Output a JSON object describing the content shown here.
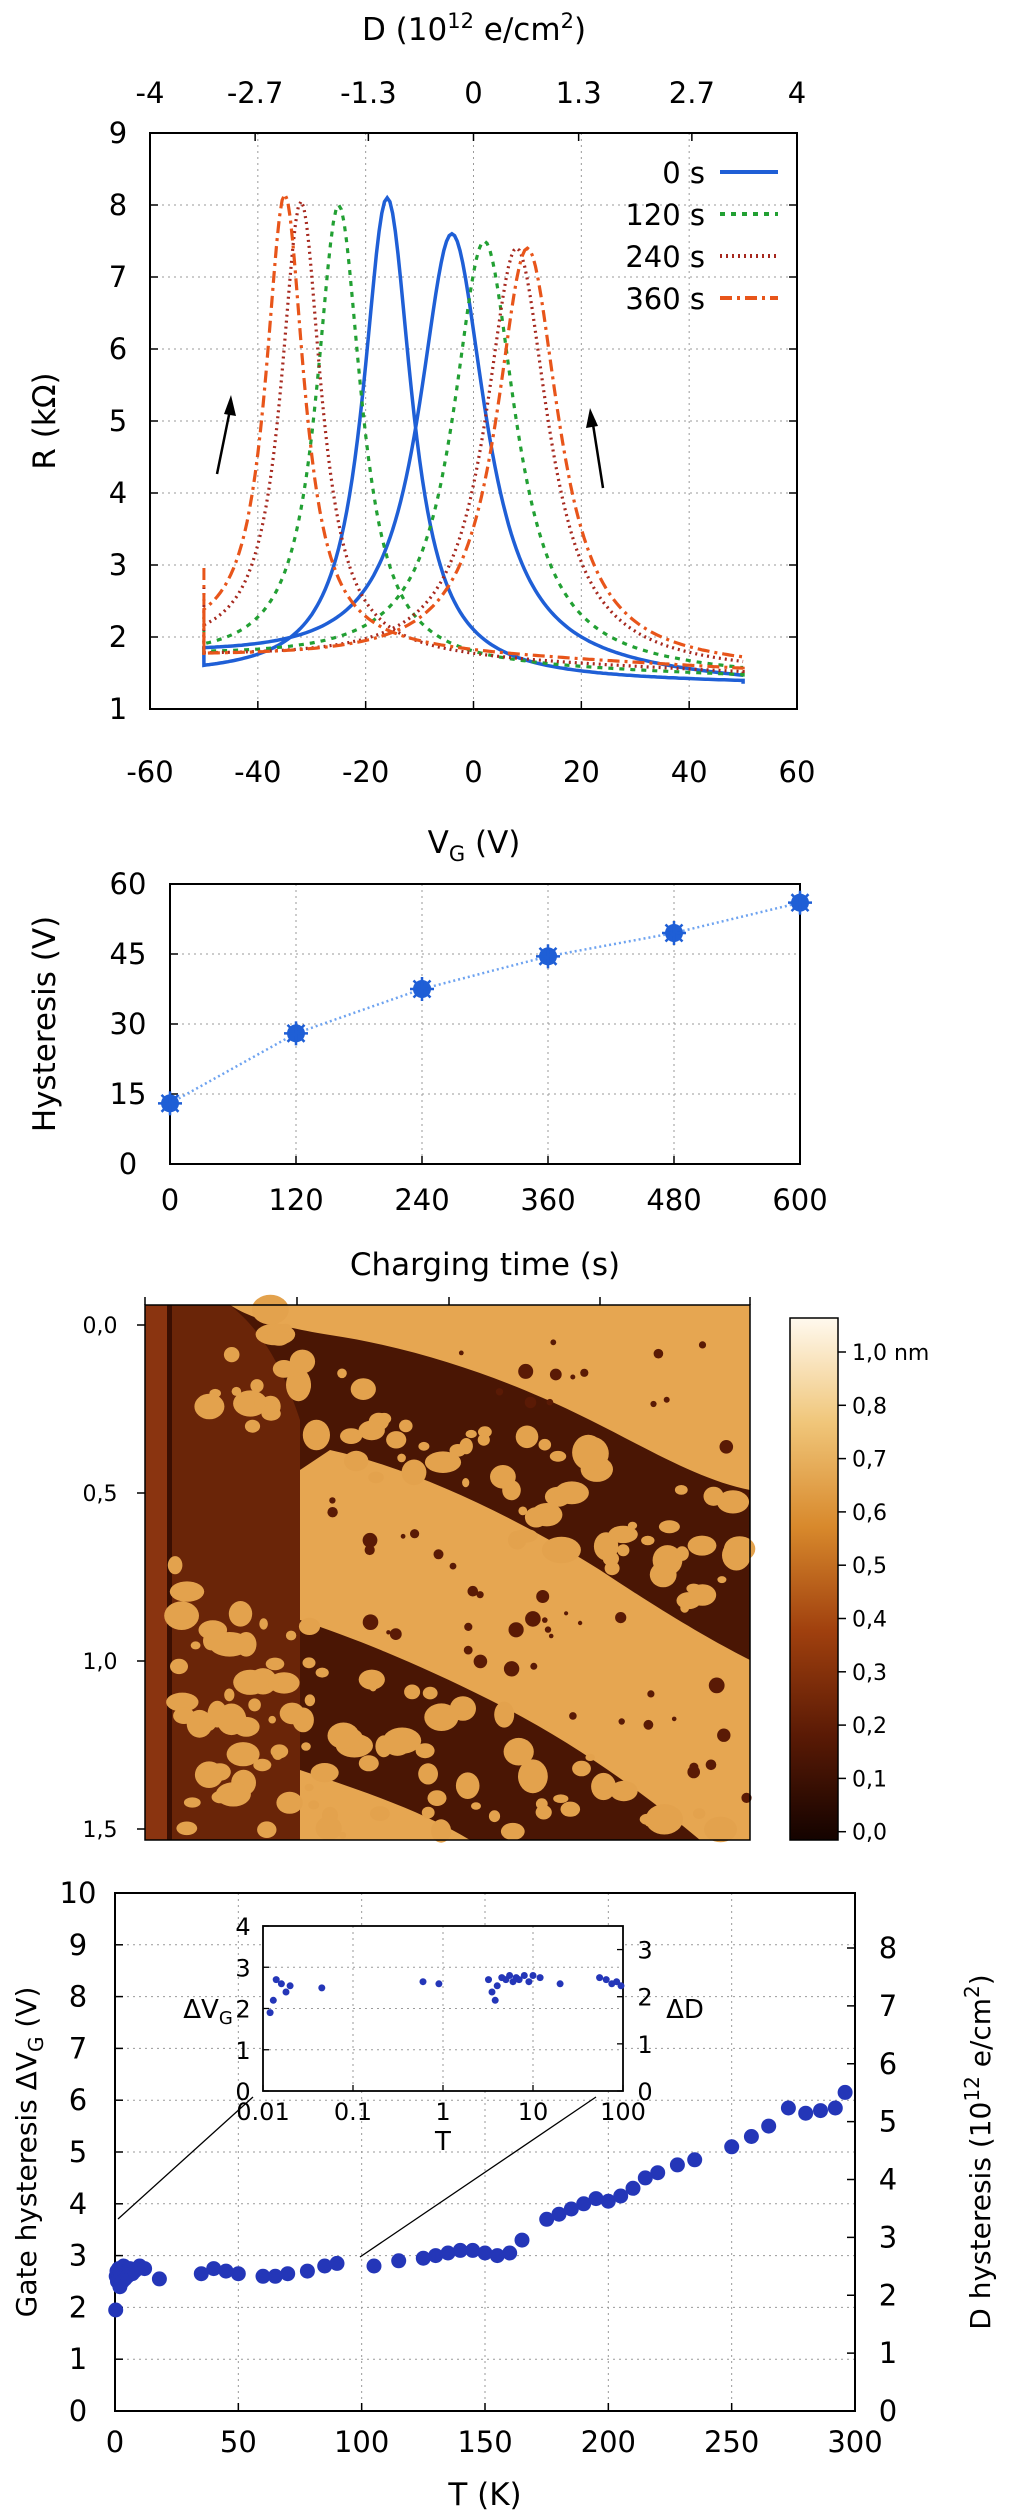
{
  "chart_data": [
    {
      "type": "line",
      "panel": "a",
      "xlabel_main": "V",
      "xlabel_sub": "G",
      "xlabel_unit": " (V)",
      "ylabel": "R (kΩ)",
      "top_label_main": "D (10",
      "top_label_exp": "12",
      "top_label_unit": " e/cm",
      "top_label_exp2": "2",
      "top_label_close": ")",
      "xlim": [
        -60,
        60
      ],
      "ylim": [
        1,
        9
      ],
      "xticks": [
        "-60",
        "-40",
        "-20",
        "0",
        "20",
        "40",
        "60"
      ],
      "yticks": [
        "1",
        "2",
        "3",
        "4",
        "5",
        "6",
        "7",
        "8",
        "9"
      ],
      "top_ticks": [
        {
          "v": -60,
          "label": "-4"
        },
        {
          "v": -40.5,
          "label": "-2.7"
        },
        {
          "v": -19.5,
          "label": "-1.3"
        },
        {
          "v": 0,
          "label": "0"
        },
        {
          "v": 19.5,
          "label": "1.3"
        },
        {
          "v": 40.5,
          "label": "2.7"
        },
        {
          "v": 60,
          "label": "4"
        }
      ],
      "grid": true,
      "legend_position": "top-right",
      "series": [
        {
          "name": "0 s",
          "color": "#1f5fd6",
          "dash": "solid",
          "peak_down": -16,
          "peak_up": -4,
          "max_down": 8.1,
          "max_up": 7.6,
          "w_down": 5.5,
          "w_up": 7.5,
          "start": 1.7,
          "end": 1.35
        },
        {
          "name": "120 s",
          "color": "#22a033",
          "dash": "dot",
          "peak_down": -25,
          "peak_up": 2,
          "max_down": 8.0,
          "max_up": 7.5,
          "w_down": 5.0,
          "w_up": 7.0,
          "start": 2.3,
          "end": 1.45
        },
        {
          "name": "240 s",
          "color": "#a6281e",
          "dash": "dotfine",
          "peak_down": -32,
          "peak_up": 8,
          "max_down": 8.05,
          "max_up": 7.4,
          "w_down": 4.5,
          "w_up": 7.0,
          "start": 2.7,
          "end": 1.5
        },
        {
          "name": "360 s",
          "color": "#e8551a",
          "dash": "dashdot",
          "peak_down": -35,
          "peak_up": 10,
          "max_down": 8.15,
          "max_up": 7.4,
          "w_down": 4.3,
          "w_up": 7.0,
          "start": 3.0,
          "end": 1.55
        }
      ]
    },
    {
      "type": "scatter",
      "panel": "b",
      "xlabel": "Charging time (s)",
      "ylabel": "Hysteresis (V)",
      "xlim": [
        0,
        600
      ],
      "ylim": [
        0,
        60
      ],
      "xticks": [
        "0",
        "120",
        "240",
        "360",
        "480",
        "600"
      ],
      "yticks": [
        "0",
        "15",
        "30",
        "45",
        "60"
      ],
      "grid": true,
      "x": [
        0,
        120,
        240,
        360,
        480,
        600
      ],
      "y": [
        13,
        28,
        37.5,
        44.5,
        49.5,
        56
      ]
    },
    {
      "type": "heatmap",
      "panel": "c",
      "yticks": [
        "0,0",
        "0,5",
        "1,0",
        "1,5"
      ],
      "colorbar_ticks": [
        "1,0 nm",
        "0,8",
        "0,7",
        "0,6",
        "0,5",
        "0,4",
        "0,3",
        "0,2",
        "0,1",
        "0,0"
      ],
      "colorbar_range": [
        0,
        1.0
      ],
      "colors": [
        "#140300",
        "#5a1a05",
        "#a0400e",
        "#d8892c",
        "#f0c67a",
        "#fff9ee"
      ]
    },
    {
      "type": "scatter",
      "panel": "d",
      "xlabel": "T (K)",
      "ylabel_main": "Gate hysteresis ΔV",
      "ylabel_sub": "G",
      "ylabel_unit": " (V)",
      "y2label_main": "D hysteresis (10",
      "y2label_exp": "12",
      "y2label_unit": " e/cm",
      "y2label_exp2": "2",
      "y2label_close": ")",
      "xlim": [
        0,
        300
      ],
      "ylim": [
        0,
        10
      ],
      "xticks": [
        "0",
        "50",
        "100",
        "150",
        "200",
        "250",
        "300"
      ],
      "yticks": [
        "0",
        "1",
        "2",
        "3",
        "4",
        "5",
        "6",
        "7",
        "8",
        "9",
        "10"
      ],
      "y2ticks": [
        "0",
        "1",
        "2",
        "3",
        "4",
        "5",
        "6",
        "7",
        "8"
      ],
      "grid": true,
      "color": "#2436b8",
      "points": [
        [
          0.3,
          1.95
        ],
        [
          0.5,
          2.6
        ],
        [
          0.8,
          2.7
        ],
        [
          1,
          2.5
        ],
        [
          1.5,
          2.75
        ],
        [
          2,
          2.4
        ],
        [
          2.5,
          2.6
        ],
        [
          3,
          2.5
        ],
        [
          3.5,
          2.8
        ],
        [
          4,
          2.55
        ],
        [
          4.5,
          2.7
        ],
        [
          5,
          2.6
        ],
        [
          6,
          2.75
        ],
        [
          7,
          2.65
        ],
        [
          8,
          2.7
        ],
        [
          10,
          2.8
        ],
        [
          12,
          2.75
        ],
        [
          18,
          2.55
        ],
        [
          35,
          2.65
        ],
        [
          40,
          2.75
        ],
        [
          45,
          2.7
        ],
        [
          50,
          2.65
        ],
        [
          60,
          2.6
        ],
        [
          65,
          2.6
        ],
        [
          70,
          2.65
        ],
        [
          78,
          2.7
        ],
        [
          85,
          2.8
        ],
        [
          90,
          2.85
        ],
        [
          105,
          2.8
        ],
        [
          115,
          2.9
        ],
        [
          125,
          2.95
        ],
        [
          130,
          3.0
        ],
        [
          135,
          3.05
        ],
        [
          140,
          3.1
        ],
        [
          145,
          3.1
        ],
        [
          150,
          3.05
        ],
        [
          155,
          3.0
        ],
        [
          160,
          3.05
        ],
        [
          165,
          3.3
        ],
        [
          175,
          3.7
        ],
        [
          180,
          3.8
        ],
        [
          185,
          3.9
        ],
        [
          190,
          4.0
        ],
        [
          195,
          4.1
        ],
        [
          200,
          4.05
        ],
        [
          205,
          4.15
        ],
        [
          210,
          4.3
        ],
        [
          215,
          4.5
        ],
        [
          220,
          4.6
        ],
        [
          228,
          4.75
        ],
        [
          235,
          4.85
        ],
        [
          250,
          5.1
        ],
        [
          258,
          5.3
        ],
        [
          265,
          5.5
        ],
        [
          273,
          5.85
        ],
        [
          280,
          5.75
        ],
        [
          286,
          5.8
        ],
        [
          292,
          5.85
        ],
        [
          296,
          6.15
        ]
      ],
      "inset": {
        "xlabel": "T",
        "ylabel_main": "ΔV",
        "ylabel_sub": "G",
        "y2label": "ΔD",
        "xlim": [
          0.01,
          100
        ],
        "ylim": [
          0,
          4
        ],
        "xticks": [
          "0.01",
          "0.1",
          "1",
          "10",
          "100"
        ],
        "yticks": [
          "0",
          "1",
          "2",
          "3",
          "4"
        ],
        "y2ticks": [
          "0",
          "1",
          "2",
          "3"
        ],
        "points": [
          [
            0.012,
            1.9
          ],
          [
            0.013,
            2.2
          ],
          [
            0.014,
            2.7
          ],
          [
            0.016,
            2.6
          ],
          [
            0.018,
            2.4
          ],
          [
            0.02,
            2.55
          ],
          [
            0.045,
            2.5
          ],
          [
            0.6,
            2.65
          ],
          [
            0.9,
            2.6
          ],
          [
            3.2,
            2.7
          ],
          [
            3.5,
            2.4
          ],
          [
            3.8,
            2.2
          ],
          [
            4,
            2.55
          ],
          [
            4.5,
            2.75
          ],
          [
            5,
            2.7
          ],
          [
            5.5,
            2.8
          ],
          [
            6,
            2.65
          ],
          [
            6.5,
            2.75
          ],
          [
            7,
            2.7
          ],
          [
            8,
            2.8
          ],
          [
            9,
            2.65
          ],
          [
            10,
            2.8
          ],
          [
            12,
            2.75
          ],
          [
            20,
            2.6
          ],
          [
            55,
            2.75
          ],
          [
            65,
            2.7
          ],
          [
            75,
            2.6
          ],
          [
            85,
            2.65
          ],
          [
            95,
            2.55
          ]
        ]
      }
    }
  ]
}
